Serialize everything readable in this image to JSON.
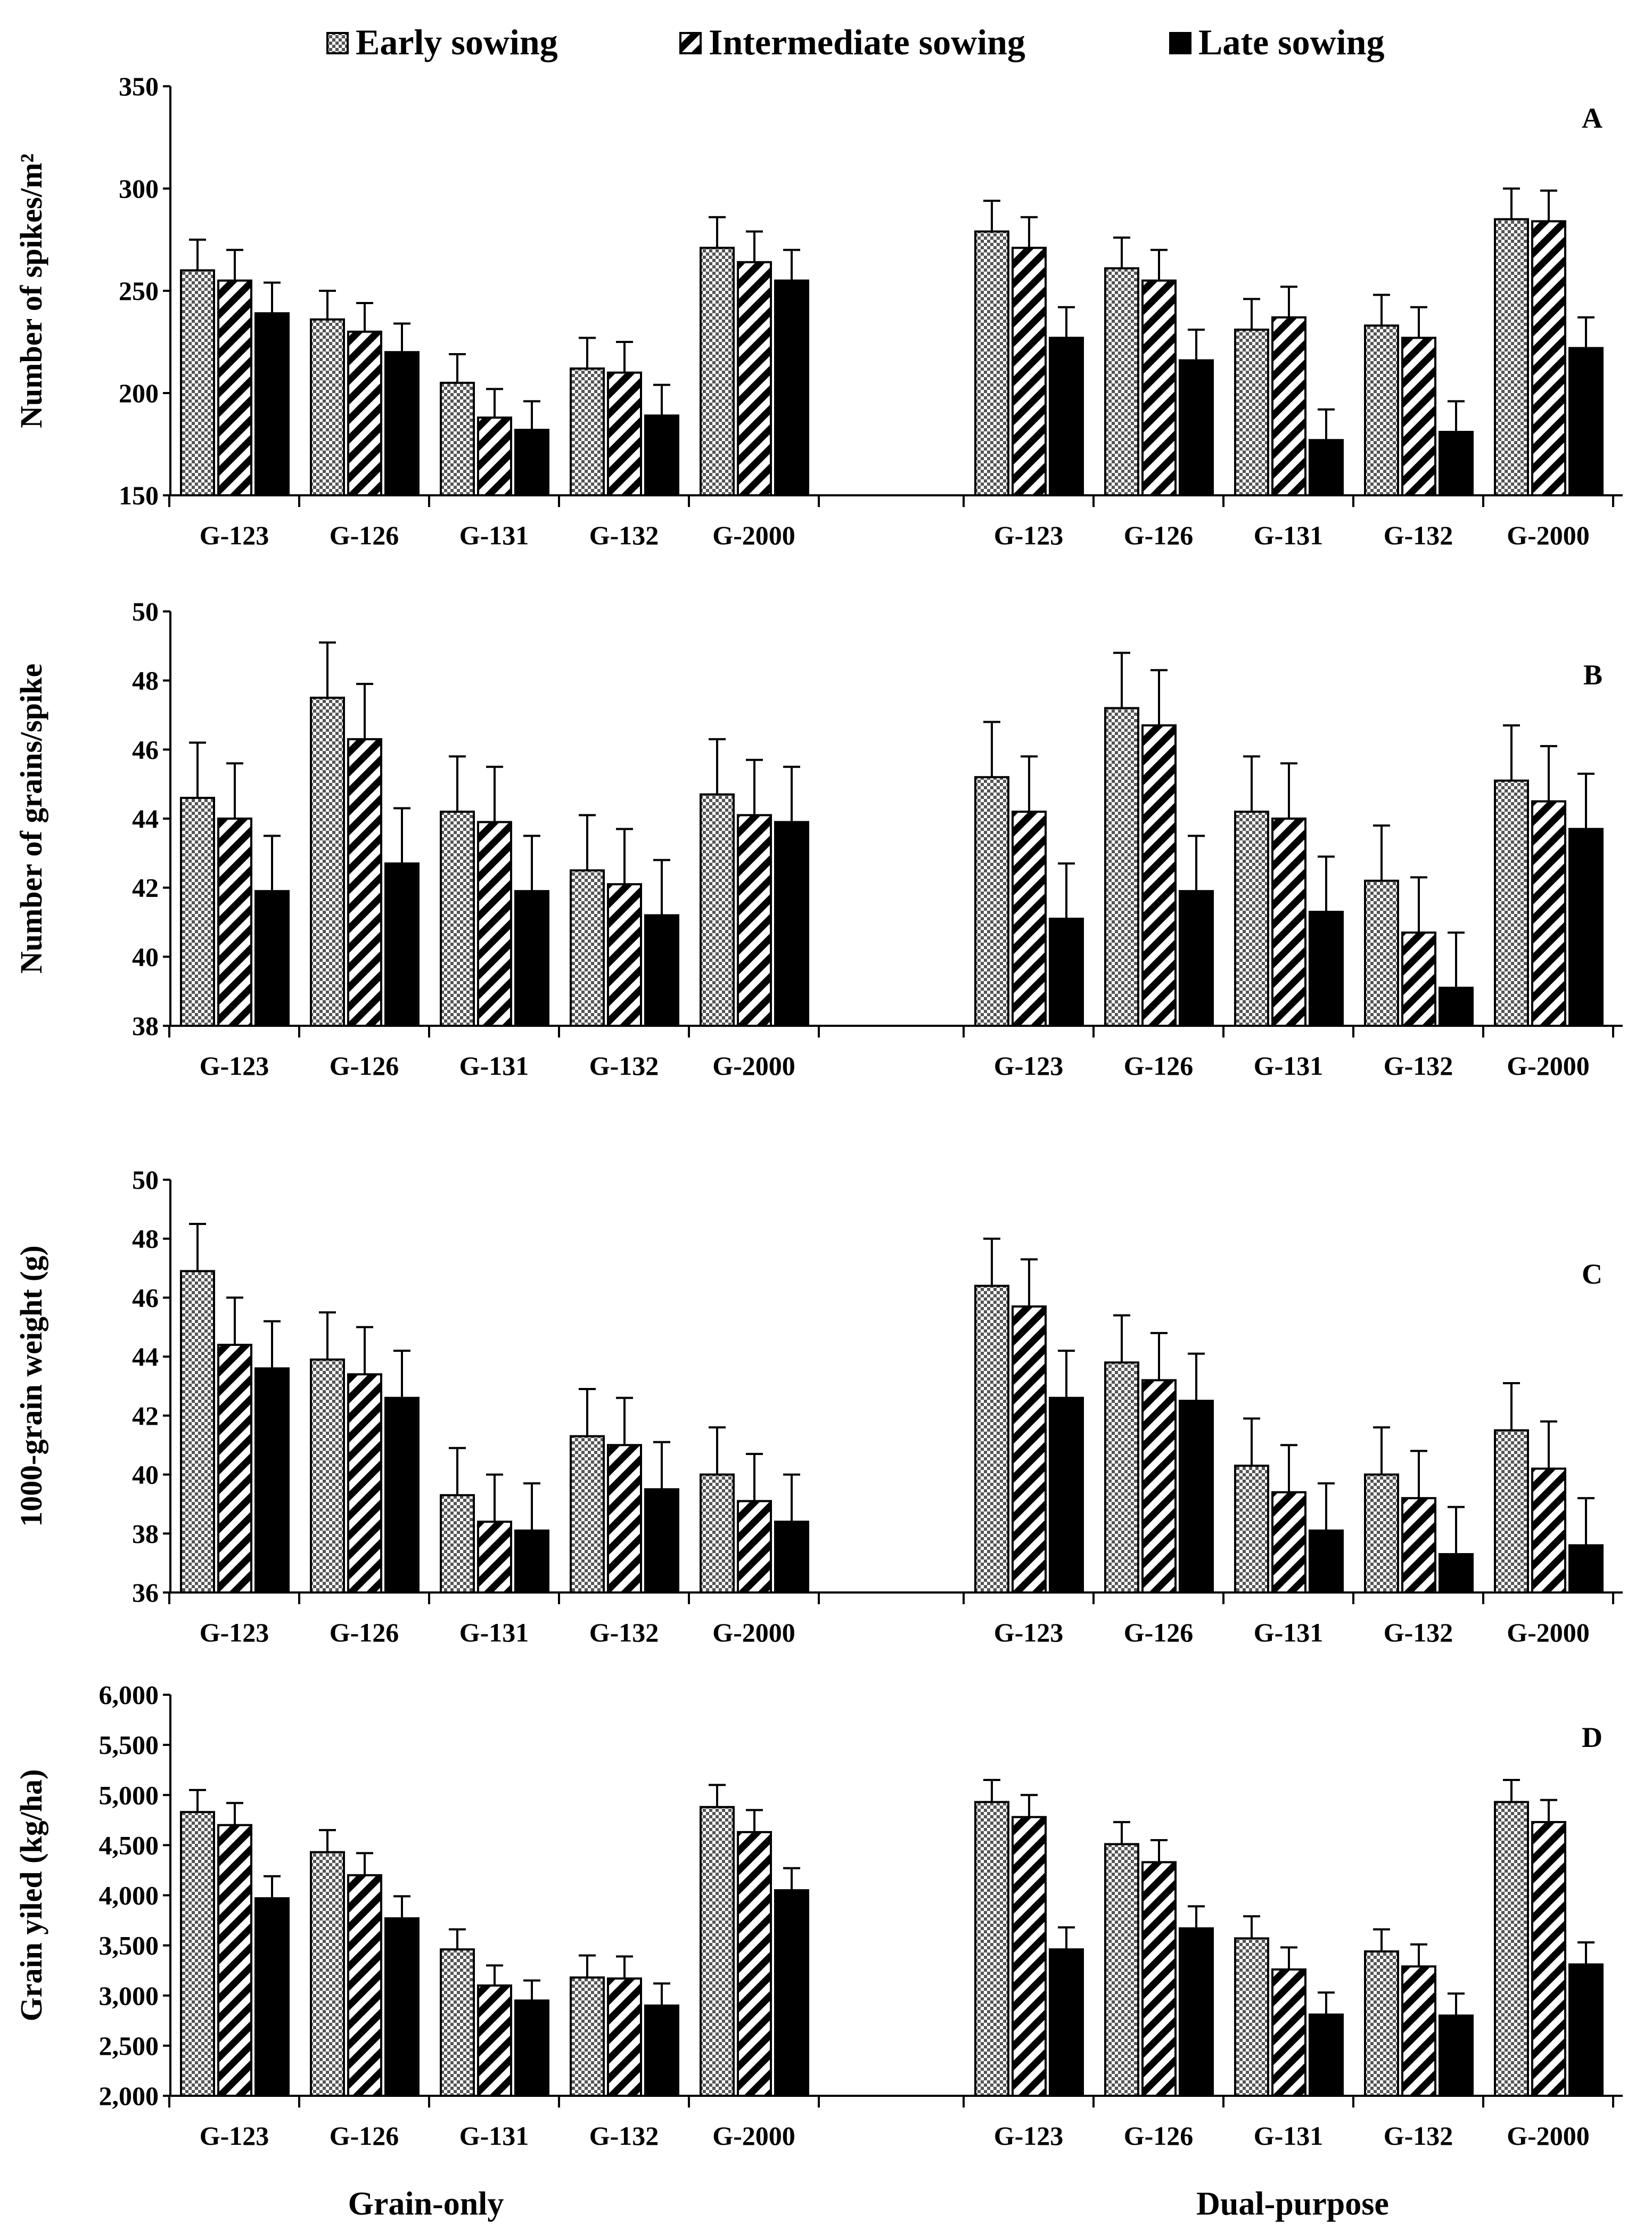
{
  "legend": [
    {
      "label": "Early sowing",
      "pattern": "checker"
    },
    {
      "label": "Intermediate sowing",
      "pattern": "hatch"
    },
    {
      "label": "Late sowing",
      "pattern": "solid"
    }
  ],
  "groups": [
    "Grain-only",
    "Dual-purpose"
  ],
  "chart_data": [
    {
      "type": "bar",
      "panel": "A",
      "ylabel": "Number of spikes/m²",
      "ylim": [
        150,
        350
      ],
      "yticks": [
        150,
        200,
        250,
        300,
        350
      ],
      "ytick_labels": [
        "150",
        "200",
        "250",
        "300",
        "350"
      ],
      "categories": [
        "G-123",
        "G-126",
        "G-131",
        "G-132",
        "G-2000"
      ],
      "groups": [
        {
          "name": "Grain-only",
          "series": [
            {
              "name": "Early sowing",
              "values": [
                260,
                236,
                205,
                212,
                271
              ],
              "errors": [
                15,
                14,
                14,
                15,
                15
              ]
            },
            {
              "name": "Intermediate sowing",
              "values": [
                255,
                230,
                188,
                210,
                264
              ],
              "errors": [
                15,
                14,
                14,
                15,
                15
              ]
            },
            {
              "name": "Late sowing",
              "values": [
                239,
                220,
                182,
                189,
                255
              ],
              "errors": [
                15,
                14,
                14,
                15,
                15
              ]
            }
          ]
        },
        {
          "name": "Dual-purpose",
          "series": [
            {
              "name": "Early sowing",
              "values": [
                279,
                261,
                231,
                233,
                285
              ],
              "errors": [
                15,
                15,
                15,
                15,
                15
              ]
            },
            {
              "name": "Intermediate sowing",
              "values": [
                271,
                255,
                237,
                227,
                284
              ],
              "errors": [
                15,
                15,
                15,
                15,
                15
              ]
            },
            {
              "name": "Late sowing",
              "values": [
                227,
                216,
                177,
                181,
                222
              ],
              "errors": [
                15,
                15,
                15,
                15,
                15
              ]
            }
          ]
        }
      ]
    },
    {
      "type": "bar",
      "panel": "B",
      "ylabel": "Number of grains/spike",
      "ylim": [
        38,
        50
      ],
      "yticks": [
        38,
        40,
        42,
        44,
        46,
        48,
        50
      ],
      "ytick_labels": [
        "38",
        "40",
        "42",
        "44",
        "46",
        "48",
        "50"
      ],
      "categories": [
        "G-123",
        "G-126",
        "G-131",
        "G-132",
        "G-2000"
      ],
      "groups": [
        {
          "name": "Grain-only",
          "series": [
            {
              "name": "Early sowing",
              "values": [
                44.6,
                47.5,
                44.2,
                42.5,
                44.7
              ],
              "errors": [
                1.6,
                1.6,
                1.6,
                1.6,
                1.6
              ]
            },
            {
              "name": "Intermediate sowing",
              "values": [
                44.0,
                46.3,
                43.9,
                42.1,
                44.1
              ],
              "errors": [
                1.6,
                1.6,
                1.6,
                1.6,
                1.6
              ]
            },
            {
              "name": "Late sowing",
              "values": [
                41.9,
                42.7,
                41.9,
                41.2,
                43.9
              ],
              "errors": [
                1.6,
                1.6,
                1.6,
                1.6,
                1.6
              ]
            }
          ]
        },
        {
          "name": "Dual-purpose",
          "series": [
            {
              "name": "Early sowing",
              "values": [
                45.2,
                47.2,
                44.2,
                42.2,
                45.1
              ],
              "errors": [
                1.6,
                1.6,
                1.6,
                1.6,
                1.6
              ]
            },
            {
              "name": "Intermediate sowing",
              "values": [
                44.2,
                46.7,
                44.0,
                40.7,
                44.5
              ],
              "errors": [
                1.6,
                1.6,
                1.6,
                1.6,
                1.6
              ]
            },
            {
              "name": "Late sowing",
              "values": [
                41.1,
                41.9,
                41.3,
                39.1,
                43.7
              ],
              "errors": [
                1.6,
                1.6,
                1.6,
                1.6,
                1.6
              ]
            }
          ]
        }
      ]
    },
    {
      "type": "bar",
      "panel": "C",
      "ylabel": "1000-grain weight (g)",
      "ylim": [
        36,
        50
      ],
      "yticks": [
        36,
        38,
        40,
        42,
        44,
        46,
        48,
        50
      ],
      "ytick_labels": [
        "36",
        "38",
        "40",
        "42",
        "44",
        "46",
        "48",
        "50"
      ],
      "categories": [
        "G-123",
        "G-126",
        "G-131",
        "G-132",
        "G-2000"
      ],
      "groups": [
        {
          "name": "Grain-only",
          "series": [
            {
              "name": "Early sowing",
              "values": [
                46.9,
                43.9,
                39.3,
                41.3,
                40.0
              ],
              "errors": [
                1.6,
                1.6,
                1.6,
                1.6,
                1.6
              ]
            },
            {
              "name": "Intermediate sowing",
              "values": [
                44.4,
                43.4,
                38.4,
                41.0,
                39.1
              ],
              "errors": [
                1.6,
                1.6,
                1.6,
                1.6,
                1.6
              ]
            },
            {
              "name": "Late sowing",
              "values": [
                43.6,
                42.6,
                38.1,
                39.5,
                38.4
              ],
              "errors": [
                1.6,
                1.6,
                1.6,
                1.6,
                1.6
              ]
            }
          ]
        },
        {
          "name": "Dual-purpose",
          "series": [
            {
              "name": "Early sowing",
              "values": [
                46.4,
                43.8,
                40.3,
                40.0,
                41.5
              ],
              "errors": [
                1.6,
                1.6,
                1.6,
                1.6,
                1.6
              ]
            },
            {
              "name": "Intermediate sowing",
              "values": [
                45.7,
                43.2,
                39.4,
                39.2,
                40.2
              ],
              "errors": [
                1.6,
                1.6,
                1.6,
                1.6,
                1.6
              ]
            },
            {
              "name": "Late sowing",
              "values": [
                42.6,
                42.5,
                38.1,
                37.3,
                37.6
              ],
              "errors": [
                1.6,
                1.6,
                1.6,
                1.6,
                1.6
              ]
            }
          ]
        }
      ]
    },
    {
      "type": "bar",
      "panel": "D",
      "ylabel": "Grain yiled (kg/ha)",
      "ylim": [
        2000,
        6000
      ],
      "yticks": [
        2000,
        2500,
        3000,
        3500,
        4000,
        4500,
        5000,
        5500,
        6000
      ],
      "ytick_labels": [
        "2,000",
        "2,500",
        "3,000",
        "3,500",
        "4,000",
        "4,500",
        "5,000",
        "5,500",
        "6,000"
      ],
      "categories": [
        "G-123",
        "G-126",
        "G-131",
        "G-132",
        "G-2000"
      ],
      "groups": [
        {
          "name": "Grain-only",
          "series": [
            {
              "name": "Early sowing",
              "values": [
                4830,
                4430,
                3460,
                3180,
                4880
              ],
              "errors": [
                220,
                220,
                200,
                220,
                220
              ]
            },
            {
              "name": "Intermediate sowing",
              "values": [
                4700,
                4200,
                3100,
                3170,
                4630
              ],
              "errors": [
                220,
                220,
                200,
                220,
                220
              ]
            },
            {
              "name": "Late sowing",
              "values": [
                3970,
                3770,
                2950,
                2900,
                4050
              ],
              "errors": [
                220,
                220,
                200,
                220,
                220
              ]
            }
          ]
        },
        {
          "name": "Dual-purpose",
          "series": [
            {
              "name": "Early sowing",
              "values": [
                4930,
                4510,
                3570,
                3440,
                4930
              ],
              "errors": [
                220,
                220,
                220,
                220,
                220
              ]
            },
            {
              "name": "Intermediate sowing",
              "values": [
                4780,
                4330,
                3260,
                3290,
                4730
              ],
              "errors": [
                220,
                220,
                220,
                220,
                220
              ]
            },
            {
              "name": "Late sowing",
              "values": [
                3460,
                3670,
                2810,
                2800,
                3310
              ],
              "errors": [
                220,
                220,
                220,
                220,
                220
              ]
            }
          ]
        }
      ]
    }
  ]
}
